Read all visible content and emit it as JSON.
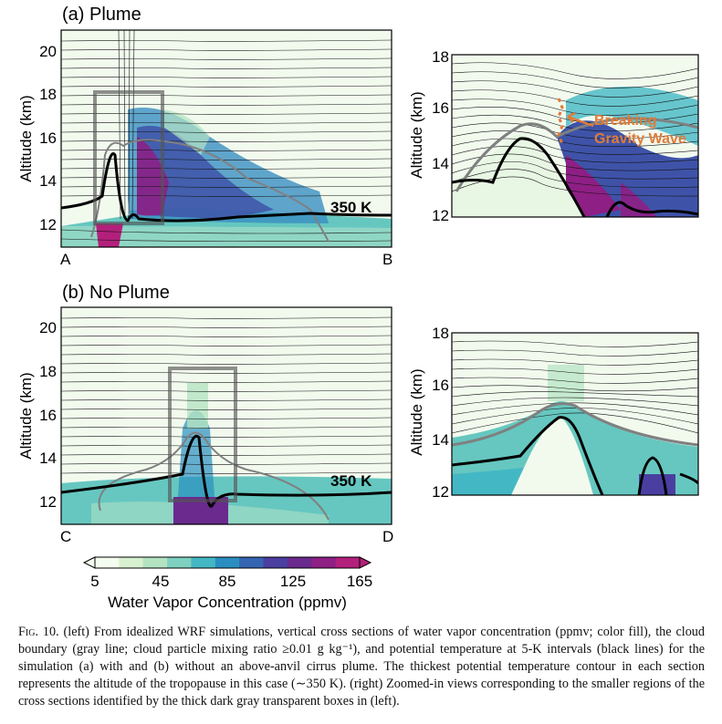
{
  "figure": {
    "panel_a": {
      "label": "(a) Plume",
      "ylabel": "Altitude (km)",
      "yticks": [
        "12",
        "14",
        "16",
        "18",
        "20"
      ],
      "left_end": "A",
      "right_end": "B",
      "contour_label": "350 K"
    },
    "panel_b": {
      "label": "(b) No Plume",
      "ylabel": "Altitude (km)",
      "yticks": [
        "12",
        "14",
        "16",
        "18",
        "20"
      ],
      "left_end": "C",
      "right_end": "D",
      "contour_label": "350 K"
    },
    "zoom_a": {
      "ylabel": "Altitude (km)",
      "yticks": [
        "12",
        "14",
        "16",
        "18"
      ],
      "annotation": [
        "Breaking",
        "Gravity Wave"
      ],
      "annotation_color": "#e07b39"
    },
    "zoom_b": {
      "ylabel": "Altitude (km)",
      "yticks": [
        "12",
        "14",
        "16",
        "18"
      ]
    },
    "colorbar": {
      "ticks": [
        "5",
        "45",
        "85",
        "125",
        "165"
      ],
      "label": "Water Vapor Concentration (ppmv)",
      "colors": [
        "#f4fbef",
        "#d7f0cf",
        "#b4e3c2",
        "#7fd0c0",
        "#43b8c4",
        "#2a8fc0",
        "#3564b3",
        "#4a3fa0",
        "#6a2a8e",
        "#8e1f84",
        "#b3207c"
      ]
    }
  },
  "caption": {
    "lead": "Fig. 10.",
    "text": " (left) From idealized WRF simulations, vertical cross sections of water vapor concentration (ppmv; color fill), the cloud boundary (gray line; cloud particle mixing ratio ≥0.01 g kg⁻¹), and potential temperature at 5-K intervals (black lines) for the simulation (a) with and (b) without an above-anvil cirrus plume. The thickest potential temperature contour in each section represents the altitude of the tropopause in this case (∼350 K). (right) Zoomed-in views corresponding to the smaller regions of the cross sections identified by the thick dark gray transparent boxes in (left)."
  }
}
